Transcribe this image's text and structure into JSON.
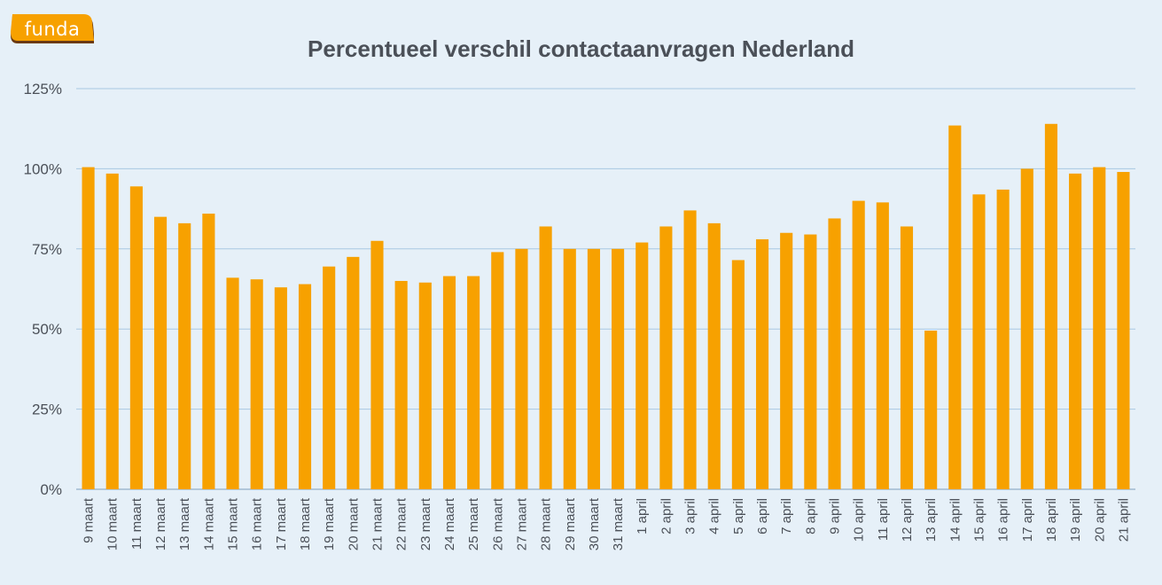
{
  "brand": {
    "logo_text": "funda",
    "logo_color": "#f7a100",
    "logo_shadow": "#6b3a12"
  },
  "colors": {
    "background": "#e6f0f8",
    "bar": "#f7a100",
    "grid": "#a8c8e2",
    "text": "#4b5058"
  },
  "chart_data": {
    "type": "bar",
    "title": "Percentueel verschil contactaanvragen Nederland",
    "xlabel": "",
    "ylabel": "",
    "ylim": [
      0,
      125
    ],
    "yticks": [
      0,
      25,
      50,
      75,
      100,
      125
    ],
    "ytick_labels": [
      "0%",
      "25%",
      "50%",
      "75%",
      "100%",
      "125%"
    ],
    "grid": true,
    "categories": [
      "9 maart",
      "10 maart",
      "11 maart",
      "12 maart",
      "13 maart",
      "14 maart",
      "15 maart",
      "16 maart",
      "17 maart",
      "18 maart",
      "19 maart",
      "20 maart",
      "21 maart",
      "22 maart",
      "23 maart",
      "24 maart",
      "25 maart",
      "26 maart",
      "27 maart",
      "28 maart",
      "29 maart",
      "30 maart",
      "31 maart",
      "1 april",
      "2 april",
      "3 april",
      "4 april",
      "5 april",
      "6 april",
      "7 april",
      "8 april",
      "9 april",
      "10 april",
      "11 april",
      "12 april",
      "13 april",
      "14 april",
      "15 april",
      "16 april",
      "17 april",
      "18 april",
      "19 april",
      "20 april",
      "21 april"
    ],
    "values": [
      100.5,
      98.5,
      94.5,
      85,
      83,
      86,
      66,
      65.5,
      63,
      64,
      69.5,
      72.5,
      77.5,
      65,
      64.5,
      66.5,
      66.5,
      74,
      75,
      82,
      75,
      75,
      75,
      77,
      82,
      87,
      83,
      71.5,
      78,
      80,
      79.5,
      84.5,
      90,
      89.5,
      82,
      49.5,
      113.5,
      92,
      93.5,
      100,
      114,
      98.5,
      100.5,
      99
    ]
  }
}
